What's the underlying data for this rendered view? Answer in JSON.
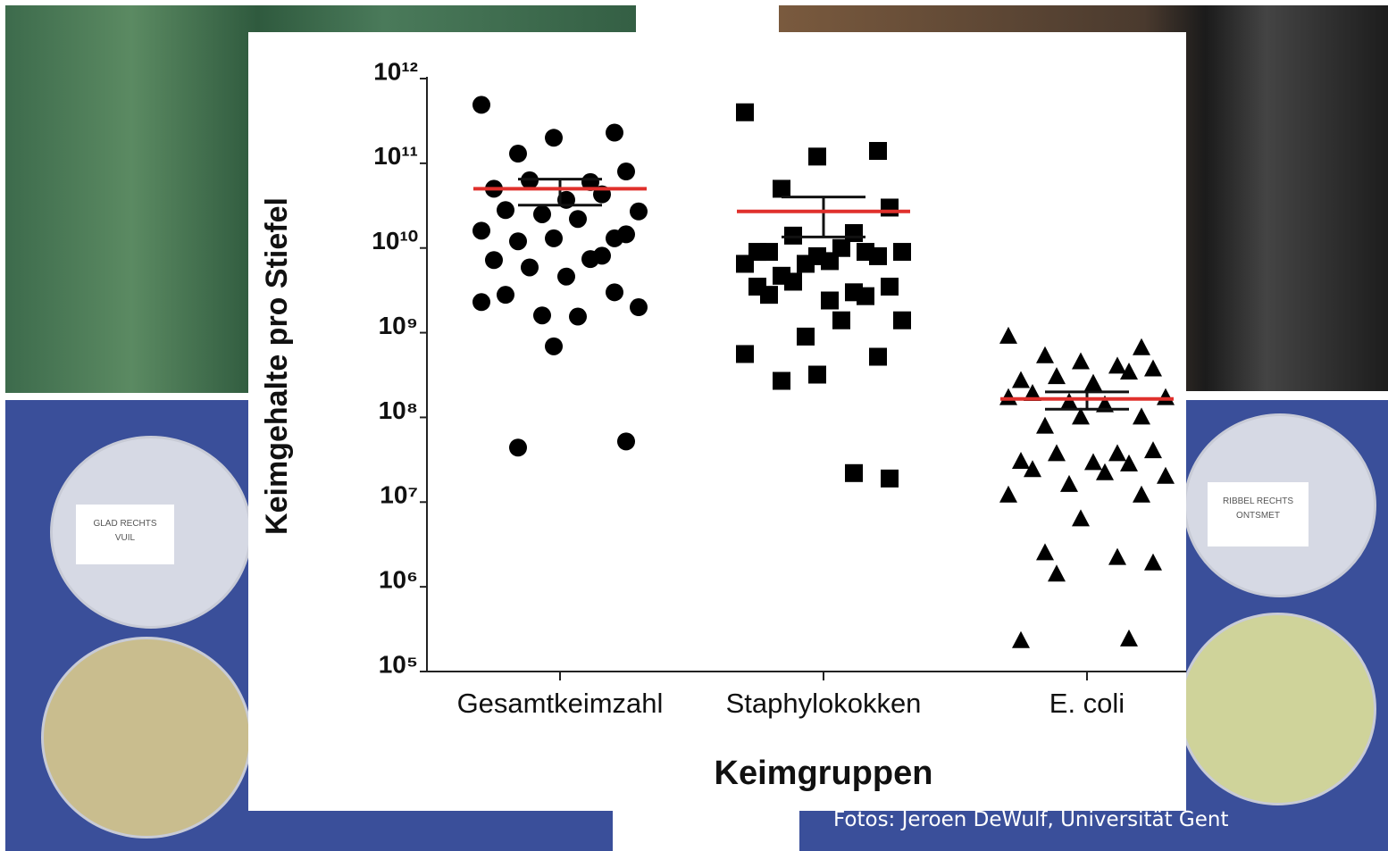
{
  "chart_data": {
    "type": "strip",
    "ylabel": "Keimgehalte pro Stiefel",
    "xlabel": "Keimgruppen",
    "categories": [
      "Gesamtkeimzahl",
      "Staphylokokken",
      "E. coli"
    ],
    "log_scale": true,
    "ylim": [
      100000,
      1000000000000
    ],
    "yticks": [
      {
        "value": 100000,
        "label": "10⁵"
      },
      {
        "value": 1000000,
        "label": "10⁶"
      },
      {
        "value": 10000000,
        "label": "10⁷"
      },
      {
        "value": 100000000,
        "label": "10⁸"
      },
      {
        "value": 1000000000,
        "label": "10⁹"
      },
      {
        "value": 10000000000,
        "label": "10¹⁰"
      },
      {
        "value": 100000000000,
        "label": "10¹¹"
      },
      {
        "value": 1000000000000,
        "label": "10¹²"
      }
    ],
    "point_color": "#000000",
    "mean_color": "#e0302c",
    "groups": [
      {
        "marker": "circle",
        "mean": 50000000000,
        "error_range": [
          32000000000,
          65000000000
        ],
        "values": [
          490000000000,
          230000000000,
          200000000000,
          130000000000,
          80000000000,
          60000000000,
          63000000000,
          50000000000,
          43000000000,
          37000000000,
          28000000000,
          27000000000,
          22000000000,
          25000000000,
          16000000000,
          13000000000,
          13000000000,
          12000000000,
          14500000000,
          7400000000,
          5900000000,
          7200000000,
          8100000000,
          4600000000,
          2800000000,
          2000000000,
          1550000000,
          1600000000,
          2300000000,
          3000000000,
          690000000,
          44000000,
          52000000
        ]
      },
      {
        "marker": "square",
        "mean": 27000000000,
        "error_range": [
          13500000000,
          40000000000
        ],
        "values": [
          400000000000,
          140000000000,
          120000000000,
          50000000000,
          30000000000,
          15000000000,
          14000000000,
          9000000000,
          9000000000,
          7000000000,
          9000000000,
          9000000000,
          10000000000,
          6500000000,
          6500000000,
          8000000000,
          8000000000,
          4700000000,
          3500000000,
          3000000000,
          4000000000,
          3500000000,
          2700000000,
          2400000000,
          2800000000,
          1400000000,
          1400000000,
          900000000,
          560000000,
          520000000,
          320000000,
          270000000,
          19000000,
          22000000
        ]
      },
      {
        "marker": "triangle",
        "mean": 165000000,
        "error_range": [
          125000000,
          200000000
        ],
        "values": [
          900000000,
          660000000,
          450000000,
          530000000,
          370000000,
          400000000,
          300000000,
          270000000,
          340000000,
          250000000,
          190000000,
          170000000,
          140000000,
          150000000,
          170000000,
          100000000,
          100000000,
          78000000,
          40000000,
          37000000,
          37000000,
          30000000,
          28000000,
          29000000,
          24000000,
          20000000,
          22000000,
          16000000,
          12000000,
          12000000,
          6300000,
          2500000,
          1900000,
          2200000,
          1400000,
          230000,
          240000
        ]
      }
    ]
  },
  "photo_labels": [
    [
      "GLAD RECHTS",
      "VUIL"
    ],
    [
      "RIBBEL RECHTS",
      "ONTSMET"
    ]
  ],
  "credit": "Fotos: Jeroen DeWulf, Universität Gent"
}
